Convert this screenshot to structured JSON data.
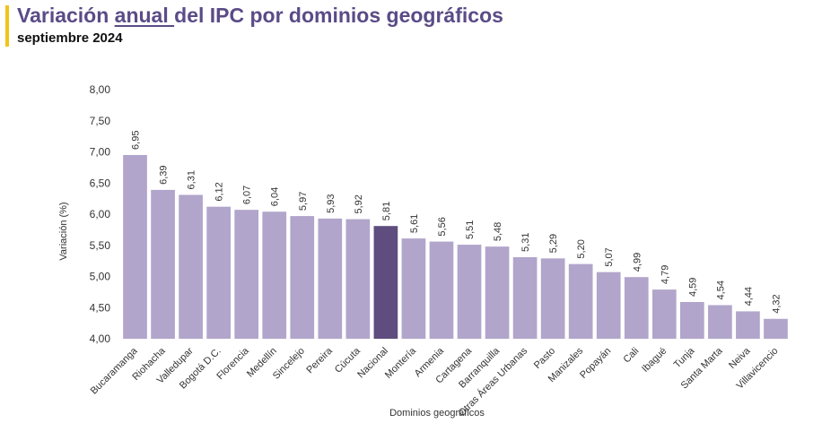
{
  "header": {
    "title_pre": "Variación ",
    "title_emph": "anual ",
    "title_post": "del IPC por dominios geográficos",
    "subtitle": "septiembre 2024"
  },
  "chart_data": {
    "type": "bar",
    "xlabel": "Dominios geográficos",
    "ylabel": "Variación (%)",
    "ylim": [
      4.0,
      8.0
    ],
    "yticks": [
      "4,00",
      "4,50",
      "5,00",
      "5,50",
      "6,00",
      "6,50",
      "7,00",
      "7,50",
      "8,00"
    ],
    "grid": false,
    "legend": "none",
    "colors": {
      "bar": "#b2a5cb",
      "highlight": "#5e4d7e"
    },
    "highlight_category": "Nacional",
    "categories": [
      "Bucaramanga",
      "Riohacha",
      "Valledupar",
      "Bogotá D.C.",
      "Florencia",
      "Medellín",
      "Sincelejo",
      "Pereira",
      "Cúcuta",
      "Nacional",
      "Montería",
      "Armenia",
      "Cartagena",
      "Barranquilla",
      "Otras Áreas Urbanas",
      "Pasto",
      "Manizales",
      "Popayán",
      "Cali",
      "Ibagué",
      "Tunja",
      "Santa Marta",
      "Neiva",
      "Villavicencio"
    ],
    "values": [
      6.95,
      6.39,
      6.31,
      6.12,
      6.07,
      6.04,
      5.97,
      5.93,
      5.92,
      5.81,
      5.61,
      5.56,
      5.51,
      5.48,
      5.31,
      5.29,
      5.2,
      5.07,
      4.99,
      4.79,
      4.59,
      4.54,
      4.44,
      4.32
    ],
    "value_labels": [
      "6,95",
      "6,39",
      "6,31",
      "6,12",
      "6,07",
      "6,04",
      "5,97",
      "5,93",
      "5,92",
      "5,81",
      "5,61",
      "5,56",
      "5,51",
      "5,48",
      "5,31",
      "5,29",
      "5,20",
      "5,07",
      "4,99",
      "4,79",
      "4,59",
      "4,54",
      "4,44",
      "4,32"
    ]
  }
}
